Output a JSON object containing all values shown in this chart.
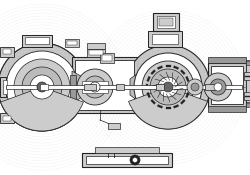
{
  "bg_color": "#ffffff",
  "line_color": "#444444",
  "dark_color": "#222222",
  "light_fill": "#cccccc",
  "mid_fill": "#999999",
  "dark_fill": "#666666",
  "white_fill": "#ffffff",
  "hatch_fill": "#bbbbbb",
  "fig_bg": "#ffffff"
}
